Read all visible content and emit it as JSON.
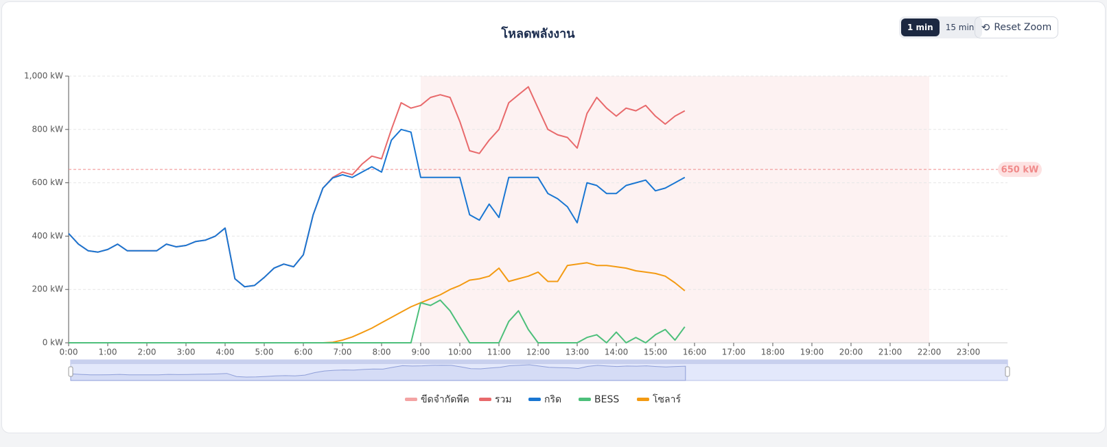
{
  "header": {
    "title": "โหลดพลังงาน"
  },
  "controls": {
    "intervals": [
      "1 min",
      "15 min"
    ],
    "reset": "Reset Zoom"
  },
  "chart_data": {
    "type": "line",
    "x": [
      0,
      0.25,
      0.5,
      0.75,
      1,
      1.25,
      1.5,
      1.75,
      2,
      2.25,
      2.5,
      2.75,
      3,
      3.25,
      3.5,
      3.75,
      4,
      4.25,
      4.5,
      4.75,
      5,
      5.25,
      5.5,
      5.75,
      6,
      6.25,
      6.5,
      6.75,
      7,
      7.25,
      7.5,
      7.75,
      8,
      8.25,
      8.5,
      8.75,
      9,
      9.25,
      9.5,
      9.75,
      10,
      10.25,
      10.5,
      10.75,
      11,
      11.25,
      11.5,
      11.75,
      12,
      12.25,
      12.5,
      12.75,
      13,
      13.25,
      13.5,
      13.75,
      14,
      14.25,
      14.5,
      14.75,
      15,
      15.25,
      15.5,
      15.75
    ],
    "series": [
      {
        "name": "รวม",
        "color": "#e8696b",
        "values": [
          410,
          370,
          345,
          340,
          350,
          370,
          345,
          345,
          345,
          345,
          370,
          360,
          365,
          380,
          385,
          400,
          430,
          240,
          210,
          215,
          245,
          280,
          295,
          285,
          330,
          480,
          580,
          620,
          640,
          630,
          670,
          700,
          690,
          800,
          900,
          880,
          890,
          920,
          930,
          920,
          830,
          720,
          710,
          760,
          800,
          900,
          930,
          960,
          880,
          800,
          780,
          770,
          730,
          860,
          920,
          880,
          850,
          880,
          870,
          890,
          850,
          820,
          850,
          870
        ]
      },
      {
        "name": "กริด",
        "color": "#1976d2",
        "values": [
          410,
          370,
          345,
          340,
          350,
          370,
          345,
          345,
          345,
          345,
          370,
          360,
          365,
          380,
          385,
          400,
          430,
          240,
          210,
          215,
          245,
          280,
          295,
          285,
          330,
          480,
          580,
          618,
          630,
          620,
          640,
          660,
          640,
          760,
          800,
          790,
          620,
          620,
          620,
          620,
          620,
          480,
          460,
          520,
          470,
          620,
          620,
          620,
          620,
          560,
          540,
          510,
          450,
          600,
          590,
          560,
          560,
          590,
          600,
          610,
          570,
          580,
          600,
          620
        ]
      },
      {
        "name": "BESS",
        "color": "#4cbf7a",
        "values": [
          0,
          0,
          0,
          0,
          0,
          0,
          0,
          0,
          0,
          0,
          0,
          0,
          0,
          0,
          0,
          0,
          0,
          0,
          0,
          0,
          0,
          0,
          0,
          0,
          0,
          0,
          0,
          0,
          0,
          0,
          0,
          0,
          0,
          0,
          0,
          0,
          150,
          140,
          160,
          120,
          60,
          0,
          0,
          0,
          0,
          80,
          120,
          50,
          0,
          0,
          0,
          0,
          0,
          20,
          30,
          0,
          40,
          0,
          20,
          0,
          30,
          50,
          10,
          60
        ]
      },
      {
        "name": "โซลาร์",
        "color": "#f39a12",
        "values": [
          0,
          0,
          0,
          0,
          0,
          0,
          0,
          0,
          0,
          0,
          0,
          0,
          0,
          0,
          0,
          0,
          0,
          0,
          0,
          0,
          0,
          0,
          0,
          0,
          0,
          0,
          0,
          2,
          10,
          22,
          38,
          55,
          75,
          95,
          115,
          135,
          150,
          165,
          180,
          200,
          215,
          235,
          240,
          250,
          280,
          230,
          240,
          250,
          265,
          230,
          230,
          290,
          295,
          300,
          290,
          290,
          285,
          280,
          270,
          265,
          260,
          250,
          225,
          195
        ]
      }
    ],
    "peak_band": {
      "name": "ขีดจำกัดพีค",
      "from": 9,
      "to": 22,
      "color": "#f4a3a3"
    },
    "limit": {
      "value": 650,
      "label": "650 kW",
      "color": "#f08a8a"
    },
    "xlim": [
      0,
      24
    ],
    "xticks": [
      {
        "value": 0,
        "label": "0:00"
      },
      {
        "value": 1,
        "label": "1:00"
      },
      {
        "value": 2,
        "label": "2:00"
      },
      {
        "value": 3,
        "label": "3:00"
      },
      {
        "value": 4,
        "label": "4:00"
      },
      {
        "value": 5,
        "label": "5:00"
      },
      {
        "value": 6,
        "label": "6:00"
      },
      {
        "value": 7,
        "label": "7:00"
      },
      {
        "value": 8,
        "label": "8:00"
      },
      {
        "value": 9,
        "label": "9:00"
      },
      {
        "value": 10,
        "label": "10:00"
      },
      {
        "value": 11,
        "label": "11:00"
      },
      {
        "value": 12,
        "label": "12:00"
      },
      {
        "value": 13,
        "label": "13:00"
      },
      {
        "value": 14,
        "label": "14:00"
      },
      {
        "value": 15,
        "label": "15:00"
      },
      {
        "value": 16,
        "label": "16:00"
      },
      {
        "value": 17,
        "label": "17:00"
      },
      {
        "value": 18,
        "label": "18:00"
      },
      {
        "value": 19,
        "label": "19:00"
      },
      {
        "value": 20,
        "label": "20:00"
      },
      {
        "value": 21,
        "label": "21:00"
      },
      {
        "value": 22,
        "label": "22:00"
      },
      {
        "value": 23,
        "label": "23:00"
      }
    ],
    "ylim": [
      0,
      1000
    ],
    "yticks": [
      {
        "value": 0,
        "label": "0 kW"
      },
      {
        "value": 200,
        "label": "200 kW"
      },
      {
        "value": 400,
        "label": "400 kW"
      },
      {
        "value": 600,
        "label": "600 kW"
      },
      {
        "value": 800,
        "label": "800 kW"
      },
      {
        "value": 1000,
        "label": "1,000 kW"
      }
    ],
    "grid": true
  }
}
